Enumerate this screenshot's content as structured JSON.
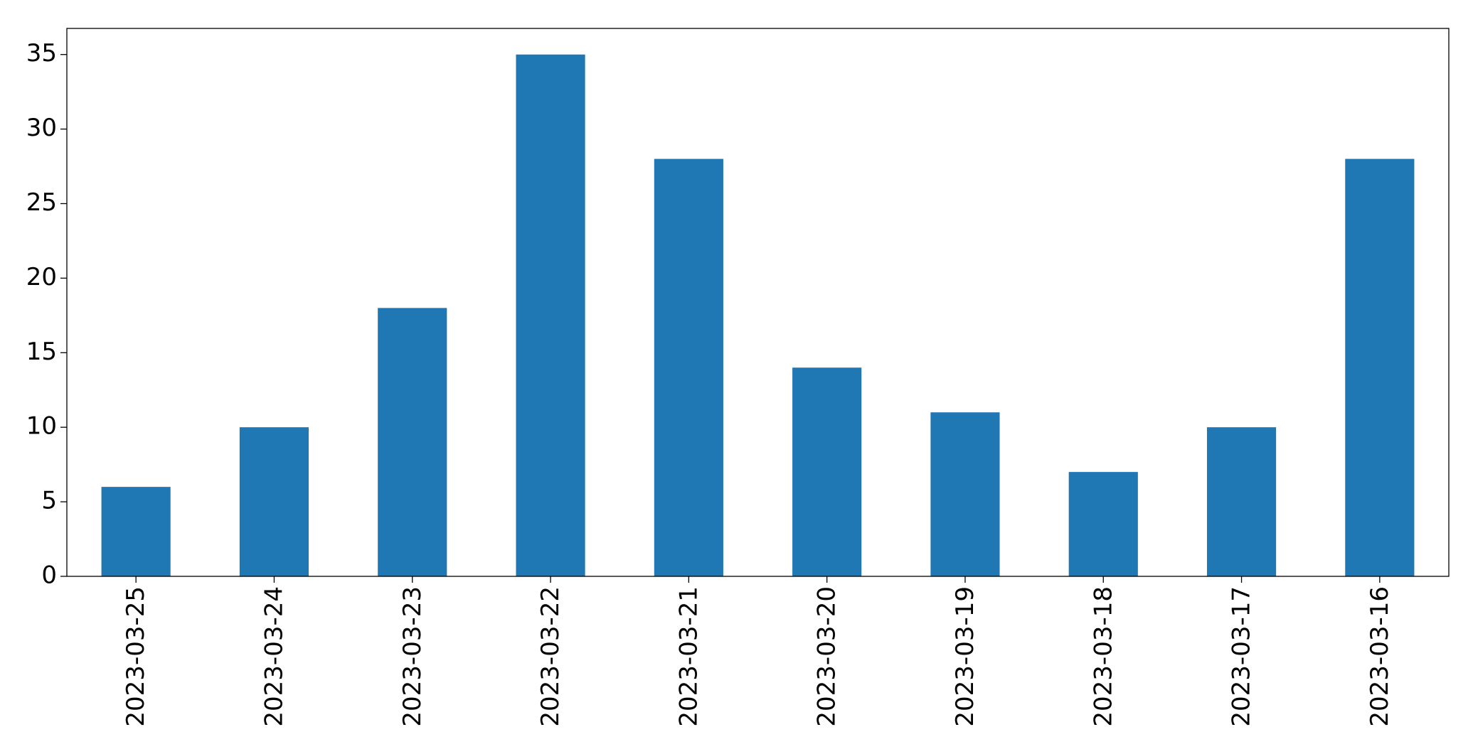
{
  "chart_data": {
    "type": "bar",
    "categories": [
      "2023-03-25",
      "2023-03-24",
      "2023-03-23",
      "2023-03-22",
      "2023-03-21",
      "2023-03-20",
      "2023-03-19",
      "2023-03-18",
      "2023-03-17",
      "2023-03-16"
    ],
    "values": [
      6,
      10,
      18,
      35,
      28,
      14,
      11,
      7,
      10,
      28
    ],
    "color": "#1f77b4",
    "ylim": [
      0,
      36.75
    ],
    "yticks": [
      0,
      5,
      10,
      15,
      20,
      25,
      30,
      35
    ],
    "grid": false
  }
}
